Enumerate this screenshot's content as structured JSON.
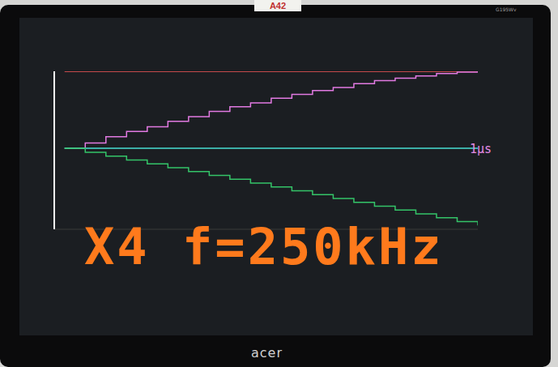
{
  "chart_data": {
    "type": "line",
    "title": "X4 f=250kHz",
    "annotation": "1μs",
    "x": [
      0,
      0.05,
      0.1,
      0.15,
      0.2,
      0.25,
      0.3,
      0.35,
      0.4,
      0.45,
      0.5,
      0.55,
      0.6,
      0.65,
      0.7,
      0.75,
      0.8,
      0.85,
      0.9,
      0.95,
      1
    ],
    "xlim": [
      -0.025,
      1
    ],
    "ylim": [
      -1.05,
      1
    ],
    "tick_labels": false,
    "grid": false,
    "series": [
      {
        "color": "#ff5a5a",
        "line_style": "solid",
        "values": [
          1,
          1,
          1,
          1,
          1,
          1,
          1,
          1,
          1,
          1,
          1,
          1,
          1,
          1,
          1,
          1,
          1,
          1,
          1,
          1,
          1
        ]
      },
      {
        "color": "#e27ae2",
        "line_style": "step",
        "values": [
          0,
          0.07,
          0.15,
          0.22,
          0.28,
          0.35,
          0.41,
          0.48,
          0.54,
          0.59,
          0.65,
          0.7,
          0.75,
          0.79,
          0.84,
          0.88,
          0.91,
          0.94,
          0.97,
          0.99,
          1
        ]
      },
      {
        "color": "#48e0d4",
        "line_style": "solid",
        "values": [
          0,
          0,
          0,
          0,
          0,
          0,
          0,
          0,
          0,
          0,
          0,
          0,
          0,
          0,
          0,
          0,
          0,
          0,
          0,
          0,
          0
        ]
      },
      {
        "color": "#34c468",
        "line_style": "step",
        "values": [
          0,
          -0.05,
          -0.1,
          -0.15,
          -0.2,
          -0.25,
          -0.3,
          -0.35,
          -0.4,
          -0.45,
          -0.5,
          -0.55,
          -0.6,
          -0.65,
          -0.7,
          -0.75,
          -0.8,
          -0.85,
          -0.9,
          -0.95,
          -1
        ]
      }
    ]
  },
  "monitor": {
    "sticker": "A42",
    "brand": "acer",
    "model": "G195Wv"
  }
}
